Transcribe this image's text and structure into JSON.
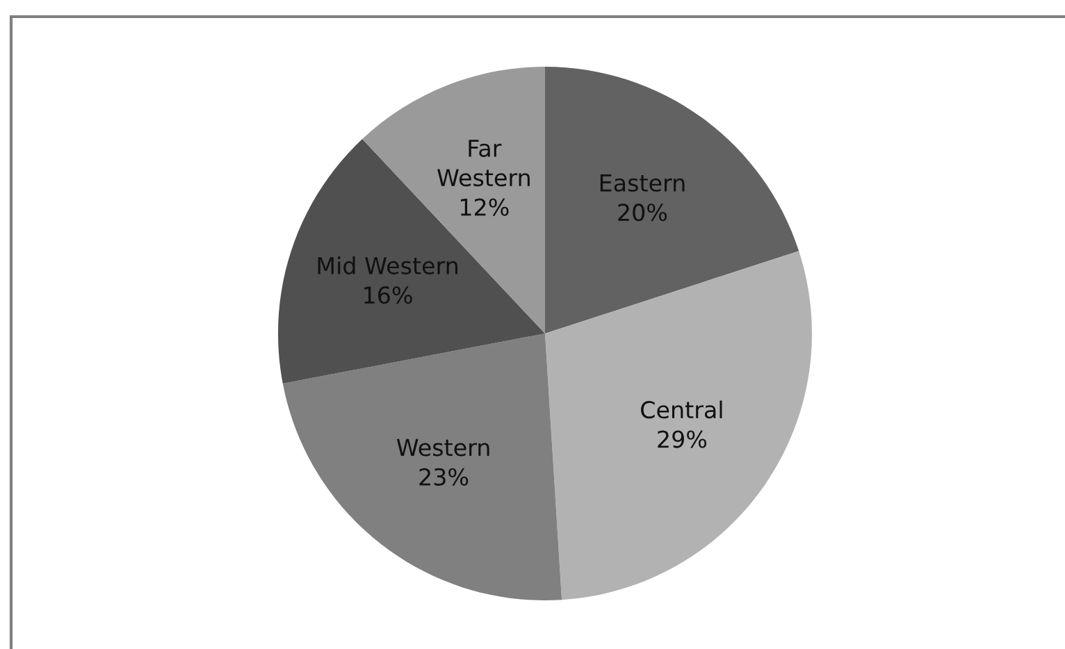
{
  "chart_data": {
    "type": "pie",
    "categories": [
      "Eastern",
      "Central",
      "Western",
      "Mid Western",
      "Far\nWestern"
    ],
    "values": [
      20,
      29,
      23,
      16,
      12
    ],
    "value_labels": [
      "20%",
      "29%",
      "23%",
      "16%",
      "12%"
    ],
    "colors": [
      "#626262",
      "#b2b2b2",
      "#808080",
      "#505050",
      "#9a9a9a"
    ],
    "data_labels": true
  }
}
